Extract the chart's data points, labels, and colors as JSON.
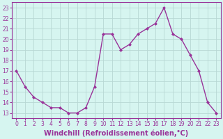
{
  "x": [
    0,
    1,
    2,
    3,
    4,
    5,
    6,
    7,
    8,
    9,
    10,
    11,
    12,
    13,
    14,
    15,
    16,
    17,
    18,
    19,
    20,
    21,
    22,
    23
  ],
  "y": [
    17,
    15.5,
    14.5,
    14,
    13.5,
    13.5,
    13,
    13,
    13.5,
    15.5,
    20.5,
    20.5,
    19,
    19.5,
    20.5,
    21,
    21.5,
    23,
    20.5,
    20,
    18.5,
    17,
    14,
    13
  ],
  "line_color": "#993399",
  "marker": "D",
  "marker_size": 2,
  "bg_color": "#d6f5f0",
  "grid_color": "#b8d8d4",
  "xlabel": "Windchill (Refroidissement éolien,°C)",
  "xlabel_fontsize": 7,
  "xlabel_color": "#993399",
  "tick_color": "#993399",
  "ylim": [
    12.5,
    23.5
  ],
  "xlim": [
    -0.5,
    23.5
  ],
  "yticks": [
    13,
    14,
    15,
    16,
    17,
    18,
    19,
    20,
    21,
    22,
    23
  ],
  "xticks": [
    0,
    1,
    2,
    3,
    4,
    5,
    6,
    7,
    8,
    9,
    10,
    11,
    12,
    13,
    14,
    15,
    16,
    17,
    18,
    19,
    20,
    21,
    22,
    23
  ],
  "tick_fontsize": 5.5,
  "line_width": 1.0,
  "spine_color": "#993399"
}
